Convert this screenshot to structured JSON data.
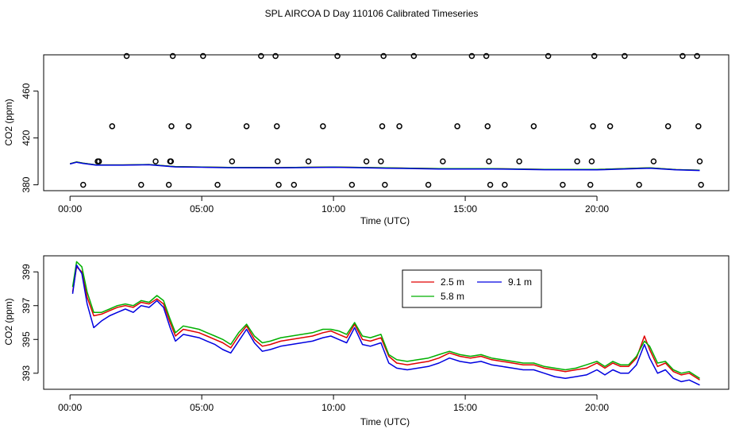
{
  "title": "SPL AIRCOA D  Day 110106  Calibrated Timeseries",
  "colors": {
    "s25": "#e00000",
    "s58": "#00b000",
    "s91": "#0000e0",
    "axis": "#000000"
  },
  "chart_data": [
    {
      "type": "scatter",
      "xlabel": "Time (UTC)",
      "ylabel": "CO2 (ppm)",
      "xlim": [
        -1,
        25
      ],
      "ylim": [
        375,
        491
      ],
      "x_ticks": [
        0,
        5,
        10,
        15,
        20
      ],
      "x_tick_labels": [
        "00:00",
        "05:00",
        "10:00",
        "15:00",
        "20:00"
      ],
      "y_ticks": [
        380,
        420,
        460
      ],
      "y_tick_labels": [
        "380",
        "420",
        "460"
      ],
      "calibration_points": [
        {
          "x": 0.5,
          "y": 380
        },
        {
          "x": 1.05,
          "y": 400
        },
        {
          "x": 1.1,
          "y": 400
        },
        {
          "x": 1.6,
          "y": 430
        },
        {
          "x": 2.15,
          "y": 490
        },
        {
          "x": 2.7,
          "y": 380
        },
        {
          "x": 3.25,
          "y": 400
        },
        {
          "x": 3.75,
          "y": 380
        },
        {
          "x": 3.8,
          "y": 400
        },
        {
          "x": 3.83,
          "y": 400
        },
        {
          "x": 3.85,
          "y": 430
        },
        {
          "x": 3.9,
          "y": 490
        },
        {
          "x": 4.5,
          "y": 430
        },
        {
          "x": 5.05,
          "y": 490
        },
        {
          "x": 5.6,
          "y": 380
        },
        {
          "x": 6.15,
          "y": 400
        },
        {
          "x": 6.7,
          "y": 430
        },
        {
          "x": 7.25,
          "y": 490
        },
        {
          "x": 7.8,
          "y": 490
        },
        {
          "x": 7.85,
          "y": 430
        },
        {
          "x": 7.88,
          "y": 400
        },
        {
          "x": 7.92,
          "y": 380
        },
        {
          "x": 8.5,
          "y": 380
        },
        {
          "x": 9.05,
          "y": 400
        },
        {
          "x": 9.6,
          "y": 430
        },
        {
          "x": 10.15,
          "y": 490
        },
        {
          "x": 10.7,
          "y": 380
        },
        {
          "x": 11.25,
          "y": 400
        },
        {
          "x": 11.8,
          "y": 400
        },
        {
          "x": 11.85,
          "y": 430
        },
        {
          "x": 11.9,
          "y": 490
        },
        {
          "x": 11.95,
          "y": 380
        },
        {
          "x": 12.5,
          "y": 430
        },
        {
          "x": 13.05,
          "y": 490
        },
        {
          "x": 13.6,
          "y": 380
        },
        {
          "x": 14.15,
          "y": 400
        },
        {
          "x": 14.7,
          "y": 430
        },
        {
          "x": 15.25,
          "y": 490
        },
        {
          "x": 15.8,
          "y": 490
        },
        {
          "x": 15.85,
          "y": 430
        },
        {
          "x": 15.9,
          "y": 400
        },
        {
          "x": 15.95,
          "y": 380
        },
        {
          "x": 16.5,
          "y": 380
        },
        {
          "x": 17.05,
          "y": 400
        },
        {
          "x": 17.6,
          "y": 430
        },
        {
          "x": 18.15,
          "y": 490
        },
        {
          "x": 18.7,
          "y": 380
        },
        {
          "x": 19.25,
          "y": 400
        },
        {
          "x": 19.75,
          "y": 380
        },
        {
          "x": 19.8,
          "y": 400
        },
        {
          "x": 19.85,
          "y": 430
        },
        {
          "x": 19.9,
          "y": 490
        },
        {
          "x": 20.5,
          "y": 430
        },
        {
          "x": 21.05,
          "y": 490
        },
        {
          "x": 21.6,
          "y": 380
        },
        {
          "x": 22.15,
          "y": 400
        },
        {
          "x": 22.7,
          "y": 430
        },
        {
          "x": 23.25,
          "y": 490
        },
        {
          "x": 23.8,
          "y": 490
        },
        {
          "x": 23.85,
          "y": 430
        },
        {
          "x": 23.9,
          "y": 400
        },
        {
          "x": 23.95,
          "y": 380
        }
      ],
      "series": [
        {
          "name": "2.5 m",
          "color": "s25",
          "x": [
            0,
            0.25,
            0.5,
            1,
            2,
            3,
            4,
            5,
            6,
            8,
            10,
            12,
            14,
            16,
            18,
            20,
            22,
            23,
            23.9
          ],
          "values": [
            398,
            399.5,
            398.5,
            397,
            397,
            397.3,
            395.5,
            395.2,
            394.8,
            394.7,
            395.2,
            394.5,
            393.8,
            393.8,
            393.2,
            393.1,
            394.5,
            393,
            392.5
          ]
        },
        {
          "name": "5.8 m",
          "color": "s58",
          "x": [
            0,
            0.25,
            0.5,
            1,
            2,
            3,
            4,
            5,
            6,
            8,
            10,
            12,
            14,
            16,
            18,
            20,
            22,
            23,
            23.9
          ],
          "values": [
            398,
            399.5,
            398.5,
            397,
            397,
            397.3,
            395.5,
            395.2,
            394.8,
            394.7,
            395.2,
            394.5,
            393.8,
            393.8,
            393.2,
            393.1,
            394.5,
            393,
            392.5
          ]
        },
        {
          "name": "9.1 m",
          "color": "s91",
          "x": [
            0,
            0.25,
            0.5,
            1,
            2,
            3,
            4,
            5,
            6,
            8,
            10,
            12,
            14,
            16,
            18,
            20,
            22,
            23,
            23.9
          ],
          "values": [
            397.8,
            399.3,
            398.3,
            396.8,
            396.8,
            397.1,
            395.3,
            395,
            394.6,
            394.5,
            395,
            394.2,
            393.5,
            393.5,
            392.9,
            392.8,
            394.2,
            392.8,
            392.2
          ]
        }
      ]
    },
    {
      "type": "line",
      "xlabel": "Time (UTC)",
      "ylabel": "CO2 (ppm)",
      "xlim": [
        -1,
        25
      ],
      "ylim": [
        392.05,
        399.95
      ],
      "x_ticks": [
        0,
        5,
        10,
        15,
        20
      ],
      "x_tick_labels": [
        "00:00",
        "05:00",
        "10:00",
        "15:00",
        "20:00"
      ],
      "y_ticks": [
        393,
        395,
        397,
        399
      ],
      "y_tick_labels": [
        "393",
        "395",
        "397",
        "399"
      ],
      "legend": {
        "position": "top-center",
        "entries": [
          "2.5 m",
          "5.8 m",
          "9.1 m"
        ]
      },
      "x": [
        0.1,
        0.25,
        0.45,
        0.65,
        0.9,
        1.2,
        1.5,
        1.8,
        2.1,
        2.4,
        2.7,
        3.0,
        3.3,
        3.55,
        3.8,
        4.0,
        4.3,
        4.6,
        4.9,
        5.2,
        5.5,
        5.8,
        6.1,
        6.4,
        6.7,
        7.0,
        7.3,
        7.6,
        8.0,
        8.4,
        8.8,
        9.2,
        9.6,
        9.9,
        10.2,
        10.5,
        10.8,
        11.1,
        11.4,
        11.8,
        12.1,
        12.4,
        12.8,
        13.2,
        13.6,
        14.0,
        14.4,
        14.8,
        15.2,
        15.6,
        16.0,
        16.4,
        16.8,
        17.2,
        17.6,
        18.0,
        18.4,
        18.8,
        19.2,
        19.6,
        20.0,
        20.3,
        20.6,
        20.9,
        21.2,
        21.5,
        21.8,
        22.0,
        22.3,
        22.6,
        22.9,
        23.2,
        23.5,
        23.9
      ],
      "series": [
        {
          "name": "2.5 m",
          "color": "s25",
          "values": [
            397.8,
            399.3,
            399.0,
            397.5,
            396.4,
            396.5,
            396.7,
            396.9,
            397.0,
            396.9,
            397.2,
            397.1,
            397.4,
            397.1,
            396.0,
            395.2,
            395.6,
            395.5,
            395.4,
            395.2,
            395.0,
            394.8,
            394.5,
            395.2,
            395.8,
            395.0,
            394.6,
            394.7,
            394.9,
            395.0,
            395.1,
            395.2,
            395.4,
            395.5,
            395.3,
            395.1,
            395.9,
            395.0,
            394.9,
            395.1,
            394.0,
            393.6,
            393.5,
            393.6,
            393.7,
            393.9,
            394.2,
            394.0,
            393.9,
            394.0,
            393.8,
            393.7,
            393.6,
            393.5,
            393.5,
            393.3,
            393.2,
            393.1,
            393.2,
            393.3,
            393.6,
            393.3,
            393.6,
            393.4,
            393.4,
            393.9,
            395.2,
            394.4,
            393.4,
            393.6,
            393.1,
            392.9,
            393.0,
            392.6
          ]
        },
        {
          "name": "5.8 m",
          "color": "s58",
          "values": [
            398.1,
            399.6,
            399.3,
            397.8,
            396.6,
            396.6,
            396.8,
            397.0,
            397.1,
            397.0,
            397.3,
            397.2,
            397.6,
            397.3,
            396.2,
            395.4,
            395.8,
            395.7,
            395.6,
            395.4,
            395.2,
            395.0,
            394.7,
            395.4,
            395.9,
            395.2,
            394.8,
            394.9,
            395.1,
            395.2,
            395.3,
            395.4,
            395.6,
            395.6,
            395.5,
            395.3,
            396.0,
            395.2,
            395.1,
            395.3,
            394.1,
            393.8,
            393.7,
            393.8,
            393.9,
            394.1,
            394.3,
            394.1,
            394.0,
            394.1,
            393.9,
            393.8,
            393.7,
            393.6,
            393.6,
            393.4,
            393.3,
            393.2,
            393.3,
            393.5,
            393.7,
            393.4,
            393.7,
            393.5,
            393.5,
            394.0,
            394.9,
            394.6,
            393.6,
            393.7,
            393.2,
            393.0,
            393.1,
            392.7
          ]
        },
        {
          "name": "9.1 m",
          "color": "s91",
          "values": [
            397.7,
            399.4,
            398.9,
            397.1,
            395.7,
            396.1,
            396.4,
            396.6,
            396.8,
            396.6,
            397.0,
            396.9,
            397.3,
            396.9,
            395.7,
            394.9,
            395.3,
            395.2,
            395.1,
            394.9,
            394.7,
            394.4,
            394.2,
            394.9,
            395.6,
            394.8,
            394.3,
            394.4,
            394.6,
            394.7,
            394.8,
            394.9,
            395.1,
            395.2,
            395.0,
            394.8,
            395.7,
            394.7,
            394.6,
            394.8,
            393.6,
            393.3,
            393.2,
            393.3,
            393.4,
            393.6,
            393.9,
            393.7,
            393.6,
            393.7,
            393.5,
            393.4,
            393.3,
            393.2,
            393.2,
            393.0,
            392.8,
            392.7,
            392.8,
            392.9,
            393.2,
            392.9,
            393.2,
            393.0,
            393.0,
            393.5,
            394.7,
            393.9,
            393.0,
            393.2,
            392.7,
            392.5,
            392.6,
            392.3
          ]
        }
      ]
    }
  ]
}
